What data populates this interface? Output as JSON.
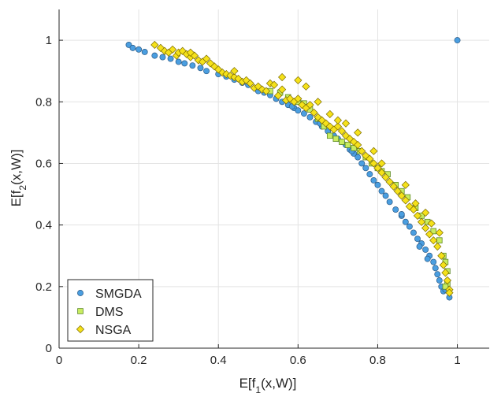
{
  "chart_data": {
    "type": "scatter",
    "title": "",
    "xlabel_main": "E[f",
    "xlabel_sub": "1",
    "xlabel_tail": "(x,W)]",
    "ylabel_main": "E[f",
    "ylabel_sub": "2",
    "ylabel_tail": "(x,W)]",
    "xlim": [
      0,
      1.08
    ],
    "ylim": [
      0,
      1.1
    ],
    "xticks": [
      0,
      0.2,
      0.4,
      0.6,
      0.8,
      1
    ],
    "yticks": [
      0,
      0.2,
      0.4,
      0.6,
      0.8,
      1
    ],
    "xtick_labels": [
      "0",
      "0.2",
      "0.4",
      "0.6",
      "0.8",
      "1"
    ],
    "ytick_labels": [
      "0",
      "0.2",
      "0.4",
      "0.6",
      "0.8",
      "1"
    ],
    "grid": true,
    "legend_position": "bottom-left",
    "series": [
      {
        "name": "SMGDA",
        "marker": "circle",
        "color": "#4a9ee0",
        "edge": "#2b5a86",
        "points": [
          [
            0.175,
            0.985
          ],
          [
            0.185,
            0.975
          ],
          [
            0.2,
            0.97
          ],
          [
            0.215,
            0.962
          ],
          [
            0.24,
            0.95
          ],
          [
            0.26,
            0.945
          ],
          [
            0.28,
            0.94
          ],
          [
            0.3,
            0.93
          ],
          [
            0.315,
            0.925
          ],
          [
            0.335,
            0.918
          ],
          [
            0.355,
            0.91
          ],
          [
            0.37,
            0.9
          ],
          [
            0.4,
            0.89
          ],
          [
            0.42,
            0.882
          ],
          [
            0.44,
            0.872
          ],
          [
            0.46,
            0.862
          ],
          [
            0.475,
            0.855
          ],
          [
            0.5,
            0.84
          ],
          [
            0.515,
            0.83
          ],
          [
            0.53,
            0.822
          ],
          [
            0.545,
            0.81
          ],
          [
            0.56,
            0.8
          ],
          [
            0.575,
            0.79
          ],
          [
            0.59,
            0.78
          ],
          [
            0.6,
            0.772
          ],
          [
            0.615,
            0.762
          ],
          [
            0.63,
            0.75
          ],
          [
            0.645,
            0.735
          ],
          [
            0.66,
            0.72
          ],
          [
            0.675,
            0.705
          ],
          [
            0.69,
            0.69
          ],
          [
            0.7,
            0.68
          ],
          [
            0.71,
            0.67
          ],
          [
            0.72,
            0.66
          ],
          [
            0.73,
            0.645
          ],
          [
            0.74,
            0.632
          ],
          [
            0.75,
            0.62
          ],
          [
            0.76,
            0.6
          ],
          [
            0.77,
            0.585
          ],
          [
            0.78,
            0.565
          ],
          [
            0.79,
            0.545
          ],
          [
            0.8,
            0.53
          ],
          [
            0.81,
            0.51
          ],
          [
            0.82,
            0.495
          ],
          [
            0.83,
            0.475
          ],
          [
            0.845,
            0.45
          ],
          [
            0.86,
            0.43
          ],
          [
            0.87,
            0.41
          ],
          [
            0.88,
            0.395
          ],
          [
            0.89,
            0.375
          ],
          [
            0.9,
            0.355
          ],
          [
            0.91,
            0.34
          ],
          [
            0.92,
            0.32
          ],
          [
            0.93,
            0.3
          ],
          [
            0.94,
            0.28
          ],
          [
            0.945,
            0.26
          ],
          [
            0.95,
            0.24
          ],
          [
            0.955,
            0.22
          ],
          [
            0.96,
            0.2
          ],
          [
            0.965,
            0.185
          ],
          [
            0.97,
            0.19
          ],
          [
            0.98,
            0.165
          ],
          [
            0.925,
            0.29
          ],
          [
            0.905,
            0.33
          ],
          [
            0.86,
            0.435
          ],
          [
            0.735,
            0.64
          ],
          [
            0.655,
            0.73
          ],
          [
            0.585,
            0.785
          ],
          [
            0.5,
            0.835
          ],
          [
            1.0,
            1.0
          ]
        ]
      },
      {
        "name": "DMS",
        "marker": "square",
        "color": "#c8ec60",
        "edge": "#5f8a2a",
        "points": [
          [
            0.53,
            0.835
          ],
          [
            0.555,
            0.83
          ],
          [
            0.575,
            0.815
          ],
          [
            0.6,
            0.8
          ],
          [
            0.615,
            0.795
          ],
          [
            0.63,
            0.775
          ],
          [
            0.65,
            0.745
          ],
          [
            0.665,
            0.72
          ],
          [
            0.68,
            0.69
          ],
          [
            0.695,
            0.68
          ],
          [
            0.71,
            0.67
          ],
          [
            0.725,
            0.66
          ],
          [
            0.74,
            0.65
          ],
          [
            0.755,
            0.64
          ],
          [
            0.77,
            0.62
          ],
          [
            0.785,
            0.6
          ],
          [
            0.8,
            0.585
          ],
          [
            0.81,
            0.575
          ],
          [
            0.825,
            0.565
          ],
          [
            0.845,
            0.53
          ],
          [
            0.86,
            0.51
          ],
          [
            0.875,
            0.49
          ],
          [
            0.895,
            0.455
          ],
          [
            0.91,
            0.43
          ],
          [
            0.925,
            0.41
          ],
          [
            0.94,
            0.38
          ],
          [
            0.955,
            0.35
          ],
          [
            0.965,
            0.3
          ],
          [
            0.97,
            0.28
          ],
          [
            0.975,
            0.25
          ],
          [
            0.975,
            0.21
          ],
          [
            0.97,
            0.2
          ]
        ]
      },
      {
        "name": "NSGA",
        "marker": "diamond",
        "color": "#f5e11a",
        "edge": "#7a6a00",
        "points": [
          [
            0.24,
            0.985
          ],
          [
            0.255,
            0.975
          ],
          [
            0.265,
            0.965
          ],
          [
            0.275,
            0.96
          ],
          [
            0.285,
            0.97
          ],
          [
            0.295,
            0.95
          ],
          [
            0.3,
            0.96
          ],
          [
            0.31,
            0.965
          ],
          [
            0.32,
            0.955
          ],
          [
            0.33,
            0.945
          ],
          [
            0.34,
            0.95
          ],
          [
            0.35,
            0.935
          ],
          [
            0.36,
            0.93
          ],
          [
            0.37,
            0.94
          ],
          [
            0.39,
            0.915
          ],
          [
            0.4,
            0.905
          ],
          [
            0.41,
            0.895
          ],
          [
            0.42,
            0.89
          ],
          [
            0.43,
            0.885
          ],
          [
            0.44,
            0.88
          ],
          [
            0.45,
            0.875
          ],
          [
            0.46,
            0.865
          ],
          [
            0.47,
            0.87
          ],
          [
            0.48,
            0.86
          ],
          [
            0.49,
            0.845
          ],
          [
            0.5,
            0.85
          ],
          [
            0.51,
            0.84
          ],
          [
            0.52,
            0.835
          ],
          [
            0.53,
            0.86
          ],
          [
            0.54,
            0.855
          ],
          [
            0.55,
            0.82
          ],
          [
            0.56,
            0.84
          ],
          [
            0.57,
            0.805
          ],
          [
            0.58,
            0.81
          ],
          [
            0.59,
            0.8
          ],
          [
            0.6,
            0.81
          ],
          [
            0.61,
            0.79
          ],
          [
            0.62,
            0.78
          ],
          [
            0.63,
            0.79
          ],
          [
            0.64,
            0.765
          ],
          [
            0.65,
            0.75
          ],
          [
            0.66,
            0.74
          ],
          [
            0.67,
            0.73
          ],
          [
            0.68,
            0.72
          ],
          [
            0.69,
            0.71
          ],
          [
            0.7,
            0.72
          ],
          [
            0.71,
            0.705
          ],
          [
            0.72,
            0.69
          ],
          [
            0.73,
            0.68
          ],
          [
            0.74,
            0.67
          ],
          [
            0.75,
            0.66
          ],
          [
            0.76,
            0.64
          ],
          [
            0.77,
            0.625
          ],
          [
            0.78,
            0.615
          ],
          [
            0.79,
            0.6
          ],
          [
            0.8,
            0.585
          ],
          [
            0.81,
            0.57
          ],
          [
            0.82,
            0.555
          ],
          [
            0.83,
            0.54
          ],
          [
            0.84,
            0.525
          ],
          [
            0.85,
            0.51
          ],
          [
            0.86,
            0.495
          ],
          [
            0.87,
            0.48
          ],
          [
            0.88,
            0.46
          ],
          [
            0.89,
            0.45
          ],
          [
            0.9,
            0.43
          ],
          [
            0.91,
            0.41
          ],
          [
            0.92,
            0.39
          ],
          [
            0.93,
            0.37
          ],
          [
            0.94,
            0.35
          ],
          [
            0.95,
            0.33
          ],
          [
            0.96,
            0.3
          ],
          [
            0.965,
            0.27
          ],
          [
            0.97,
            0.245
          ],
          [
            0.975,
            0.22
          ],
          [
            0.98,
            0.19
          ],
          [
            0.98,
            0.18
          ],
          [
            0.56,
            0.88
          ],
          [
            0.6,
            0.87
          ],
          [
            0.62,
            0.85
          ],
          [
            0.65,
            0.8
          ],
          [
            0.7,
            0.74
          ],
          [
            0.75,
            0.7
          ],
          [
            0.81,
            0.6
          ],
          [
            0.87,
            0.53
          ],
          [
            0.92,
            0.44
          ],
          [
            0.44,
            0.9
          ],
          [
            0.38,
            0.925
          ],
          [
            0.33,
            0.96
          ],
          [
            0.955,
            0.375
          ],
          [
            0.935,
            0.405
          ],
          [
            0.895,
            0.47
          ],
          [
            0.72,
            0.73
          ],
          [
            0.68,
            0.76
          ],
          [
            0.79,
            0.64
          ]
        ]
      }
    ]
  }
}
